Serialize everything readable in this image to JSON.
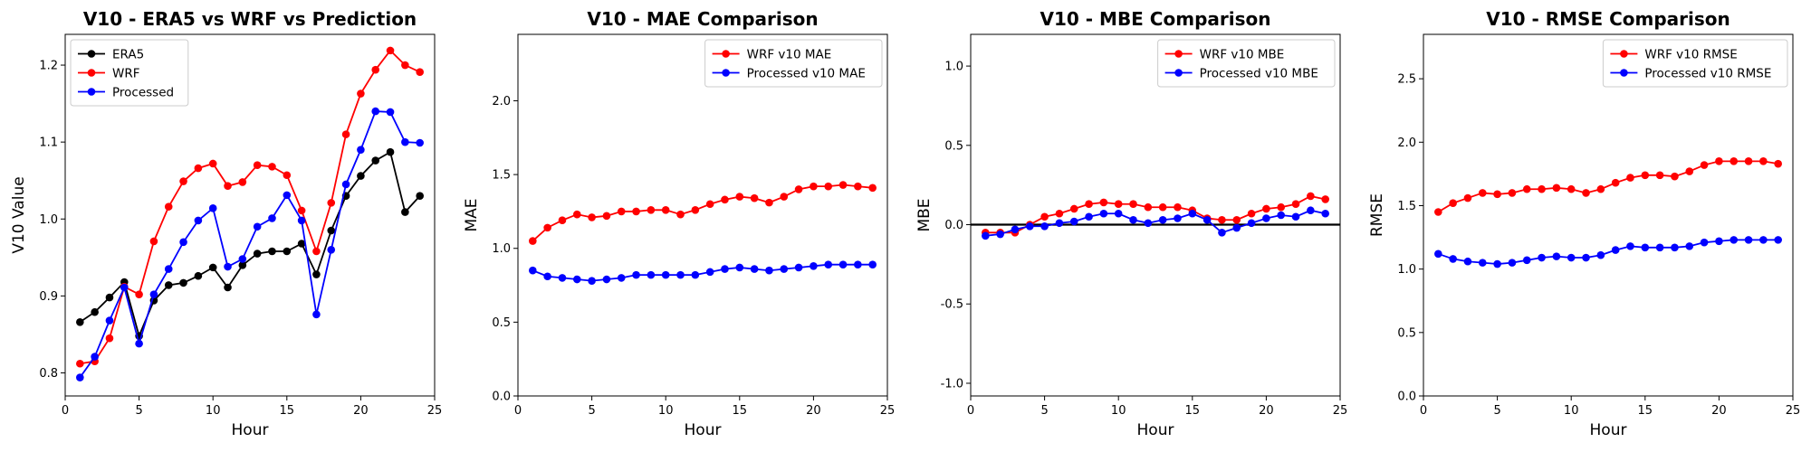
{
  "chart_data": [
    {
      "type": "line",
      "title": "V10 - ERA5 vs WRF vs Prediction",
      "xlabel": "Hour",
      "ylabel": "V10 Value",
      "xlim": [
        0,
        25
      ],
      "ylim": [
        0.77,
        1.24
      ],
      "xticks": [
        0,
        5,
        10,
        15,
        20,
        25
      ],
      "yticks": [
        0.8,
        0.9,
        1.0,
        1.1,
        1.2
      ],
      "yprecision": 1,
      "legend_position": "top-left",
      "hline": null,
      "x": [
        1,
        2,
        3,
        4,
        5,
        6,
        7,
        8,
        9,
        10,
        11,
        12,
        13,
        14,
        15,
        16,
        17,
        18,
        19,
        20,
        21,
        22,
        23,
        24
      ],
      "series": [
        {
          "name": "ERA5",
          "color": "#000000",
          "values": [
            0.866,
            0.879,
            0.898,
            0.918,
            0.848,
            0.894,
            0.914,
            0.917,
            0.926,
            0.937,
            0.911,
            0.94,
            0.955,
            0.958,
            0.958,
            0.968,
            0.928,
            0.985,
            1.03,
            1.056,
            1.076,
            1.087,
            1.009,
            1.03
          ]
        },
        {
          "name": "WRF",
          "color": "#ff0000",
          "values": [
            0.812,
            0.815,
            0.845,
            0.912,
            0.902,
            0.971,
            1.016,
            1.049,
            1.066,
            1.072,
            1.043,
            1.048,
            1.07,
            1.068,
            1.057,
            1.011,
            0.958,
            1.021,
            1.11,
            1.163,
            1.194,
            1.219,
            1.2,
            1.191
          ]
        },
        {
          "name": "Processed",
          "color": "#0000ff",
          "values": [
            0.794,
            0.821,
            0.868,
            0.911,
            0.838,
            0.902,
            0.935,
            0.97,
            0.998,
            1.014,
            0.938,
            0.948,
            0.99,
            1.001,
            1.031,
            0.998,
            0.876,
            0.96,
            1.045,
            1.09,
            1.14,
            1.139,
            1.1,
            1.099
          ]
        }
      ]
    },
    {
      "type": "line",
      "title": "V10 - MAE Comparison",
      "xlabel": "Hour",
      "ylabel": "MAE",
      "xlim": [
        0,
        25
      ],
      "ylim": [
        0,
        2.45
      ],
      "xticks": [
        0,
        5,
        10,
        15,
        20,
        25
      ],
      "yticks": [
        0.0,
        0.5,
        1.0,
        1.5,
        2.0
      ],
      "yprecision": 1,
      "legend_position": "top-right",
      "hline": null,
      "x": [
        1,
        2,
        3,
        4,
        5,
        6,
        7,
        8,
        9,
        10,
        11,
        12,
        13,
        14,
        15,
        16,
        17,
        18,
        19,
        20,
        21,
        22,
        23,
        24
      ],
      "series": [
        {
          "name": "WRF v10 MAE",
          "color": "#ff0000",
          "values": [
            1.05,
            1.14,
            1.19,
            1.23,
            1.21,
            1.22,
            1.25,
            1.25,
            1.26,
            1.26,
            1.23,
            1.26,
            1.3,
            1.33,
            1.35,
            1.34,
            1.31,
            1.35,
            1.4,
            1.42,
            1.42,
            1.43,
            1.42,
            1.41
          ]
        },
        {
          "name": "Processed v10 MAE",
          "color": "#0000ff",
          "values": [
            0.85,
            0.81,
            0.8,
            0.79,
            0.78,
            0.79,
            0.8,
            0.82,
            0.82,
            0.82,
            0.82,
            0.82,
            0.84,
            0.86,
            0.87,
            0.86,
            0.85,
            0.86,
            0.87,
            0.88,
            0.89,
            0.89,
            0.89,
            0.89
          ]
        }
      ]
    },
    {
      "type": "line",
      "title": "V10 - MBE Comparison",
      "xlabel": "Hour",
      "ylabel": "MBE",
      "xlim": [
        0,
        25
      ],
      "ylim": [
        -1.08,
        1.2
      ],
      "xticks": [
        0,
        5,
        10,
        15,
        20,
        25
      ],
      "yticks": [
        -1.0,
        -0.5,
        0.0,
        0.5,
        1.0
      ],
      "yprecision": 1,
      "legend_position": "top-right",
      "hline": 0,
      "x": [
        1,
        2,
        3,
        4,
        5,
        6,
        7,
        8,
        9,
        10,
        11,
        12,
        13,
        14,
        15,
        16,
        17,
        18,
        19,
        20,
        21,
        22,
        23,
        24
      ],
      "series": [
        {
          "name": "WRF v10 MBE",
          "color": "#ff0000",
          "values": [
            -0.05,
            -0.05,
            -0.05,
            0.0,
            0.05,
            0.07,
            0.1,
            0.13,
            0.14,
            0.13,
            0.13,
            0.11,
            0.11,
            0.11,
            0.09,
            0.04,
            0.03,
            0.03,
            0.07,
            0.1,
            0.11,
            0.13,
            0.18,
            0.16
          ]
        },
        {
          "name": "Processed v10 MBE",
          "color": "#0000ff",
          "values": [
            -0.07,
            -0.06,
            -0.03,
            -0.01,
            -0.01,
            0.01,
            0.02,
            0.05,
            0.07,
            0.07,
            0.03,
            0.01,
            0.03,
            0.04,
            0.07,
            0.03,
            -0.05,
            -0.02,
            0.01,
            0.04,
            0.06,
            0.05,
            0.09,
            0.07
          ]
        }
      ]
    },
    {
      "type": "line",
      "title": "V10 - RMSE Comparison",
      "xlabel": "Hour",
      "ylabel": "RMSE",
      "xlim": [
        0,
        25
      ],
      "ylim": [
        0,
        2.85
      ],
      "xticks": [
        0,
        5,
        10,
        15,
        20,
        25
      ],
      "yticks": [
        0.0,
        0.5,
        1.0,
        1.5,
        2.0,
        2.5
      ],
      "yprecision": 1,
      "legend_position": "top-right",
      "hline": null,
      "x": [
        1,
        2,
        3,
        4,
        5,
        6,
        7,
        8,
        9,
        10,
        11,
        12,
        13,
        14,
        15,
        16,
        17,
        18,
        19,
        20,
        21,
        22,
        23,
        24
      ],
      "series": [
        {
          "name": "WRF v10 RMSE",
          "color": "#ff0000",
          "values": [
            1.45,
            1.52,
            1.56,
            1.6,
            1.59,
            1.6,
            1.63,
            1.63,
            1.64,
            1.63,
            1.6,
            1.63,
            1.68,
            1.72,
            1.74,
            1.74,
            1.73,
            1.77,
            1.82,
            1.85,
            1.85,
            1.85,
            1.85,
            1.83
          ]
        },
        {
          "name": "Processed v10 RMSE",
          "color": "#0000ff",
          "values": [
            1.12,
            1.08,
            1.06,
            1.05,
            1.04,
            1.05,
            1.07,
            1.09,
            1.1,
            1.09,
            1.09,
            1.11,
            1.15,
            1.18,
            1.17,
            1.17,
            1.17,
            1.18,
            1.21,
            1.22,
            1.23,
            1.23,
            1.23,
            1.23
          ]
        }
      ]
    }
  ]
}
